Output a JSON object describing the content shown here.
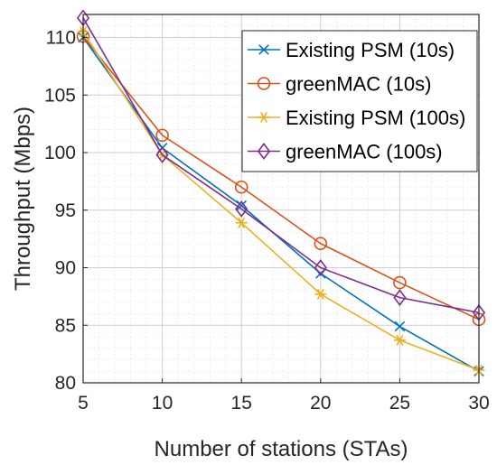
{
  "chart_data": {
    "type": "line",
    "title": "",
    "xlabel": "Number of stations (STAs)",
    "ylabel": "Throughput (Mbps)",
    "x": [
      5,
      10,
      15,
      20,
      25,
      30
    ],
    "xlim": [
      5,
      30
    ],
    "ylim": [
      80,
      112
    ],
    "xticks": [
      "5",
      "10",
      "15",
      "20",
      "25",
      "30"
    ],
    "yticks": [
      "80",
      "85",
      "90",
      "95",
      "100",
      "105",
      "110"
    ],
    "grid": true,
    "minor_grid": true,
    "legend_position": "top-right",
    "series": [
      {
        "name": "Existing PSM (10s)",
        "color": "#0072BD",
        "marker": "x",
        "values": [
          110.0,
          100.4,
          95.4,
          89.5,
          84.9,
          81.0
        ]
      },
      {
        "name": "greenMAC (10s)",
        "color": "#D95319",
        "marker": "circle",
        "values": [
          110.1,
          101.5,
          97.0,
          92.1,
          88.7,
          85.5
        ]
      },
      {
        "name": "Existing PSM (100s)",
        "color": "#EDB120",
        "marker": "asterisk",
        "values": [
          110.5,
          99.8,
          93.9,
          87.7,
          83.7,
          81.1
        ]
      },
      {
        "name": "greenMAC (100s)",
        "color": "#7E2F8E",
        "marker": "diamond",
        "values": [
          111.7,
          99.8,
          95.1,
          90.0,
          87.4,
          86.1
        ]
      }
    ]
  }
}
